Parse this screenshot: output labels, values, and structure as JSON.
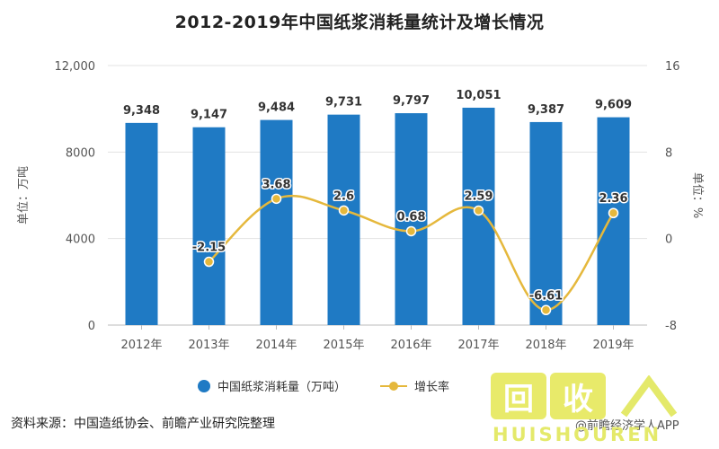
{
  "title": "2012-2019年中国纸浆消耗量统计及增长情况",
  "colors": {
    "bar": "#1f7ac4",
    "line": "#e5b83c",
    "grid": "#e3e3e3",
    "watermark": "#e4e96a"
  },
  "chart_data": {
    "type": "bar",
    "title": "2012-2019年中国纸浆消耗量统计及增长情况",
    "categories": [
      "2012年",
      "2013年",
      "2014年",
      "2015年",
      "2016年",
      "2017年",
      "2018年",
      "2019年"
    ],
    "series": [
      {
        "name": "中国纸浆消耗量（万吨）",
        "type": "bar",
        "axis": "left",
        "values": [
          9348,
          9147,
          9484,
          9731,
          9797,
          10051,
          9387,
          9609
        ],
        "labels": [
          "9,348",
          "9,147",
          "9,484",
          "9,731",
          "9,797",
          "10,051",
          "9,387",
          "9,609"
        ]
      },
      {
        "name": "增长率",
        "type": "line",
        "axis": "right",
        "values": [
          null,
          -2.15,
          3.68,
          2.6,
          0.68,
          2.59,
          -6.61,
          2.36
        ],
        "labels": [
          "",
          "-2.15",
          "3.68",
          "2.6",
          "0.68",
          "2.59",
          "-6.61",
          "2.36"
        ]
      }
    ],
    "y_left": {
      "label": "单位：万吨",
      "min": 0,
      "max": 12000,
      "ticks": [
        0,
        4000,
        8000,
        12000
      ],
      "tick_labels": [
        "0",
        "4000",
        "8000",
        "12,000"
      ]
    },
    "y_right": {
      "label": "单位：%",
      "min": -8,
      "max": 16,
      "ticks": [
        -8,
        0,
        8,
        16
      ],
      "tick_labels": [
        "-8",
        "0",
        "8",
        "16"
      ]
    },
    "grid": true,
    "legend": "bottom-center"
  },
  "legend": {
    "bar_label": "中国纸浆消耗量（万吨）",
    "line_label": "增长率"
  },
  "footer": {
    "source": "资料来源：中国造纸协会、前瞻产业研究院整理",
    "brand": "@前瞻经济学人APP"
  },
  "watermark": {
    "logo_chars": [
      "回",
      "收"
    ],
    "text": "HUISHOUREN"
  }
}
